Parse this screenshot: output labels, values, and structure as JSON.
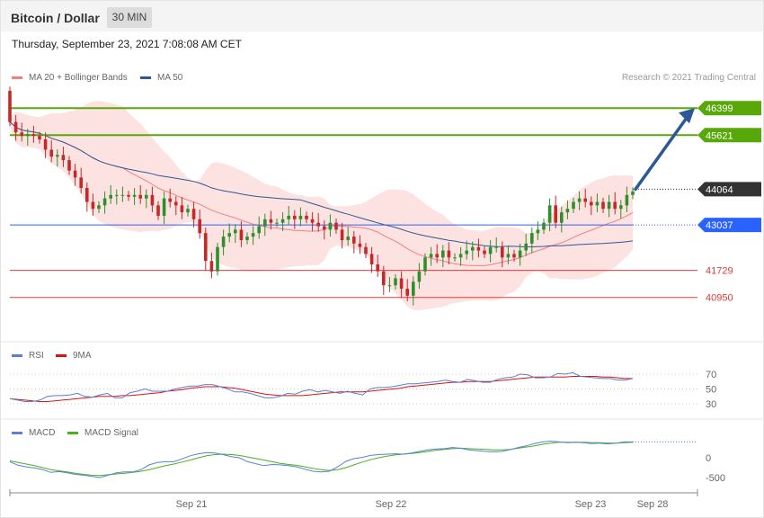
{
  "header": {
    "title": "Bitcoin / Dollar",
    "timeframe": "30 MIN"
  },
  "datetime": "Thursday, September 23, 2021 7:08:08 AM CET",
  "copyright": "Research © 2021 Trading Central",
  "legends": {
    "main": [
      {
        "label": "MA 20 + Bollinger Bands",
        "color": "#f08080"
      },
      {
        "label": "MA 50",
        "color": "#2c5896"
      }
    ],
    "rsi": [
      {
        "label": "RSI",
        "color": "#5b7fd6"
      },
      {
        "label": "9MA",
        "color": "#dd1111"
      }
    ],
    "macd": [
      {
        "label": "MACD",
        "color": "#5b7fd6"
      },
      {
        "label": "MACD Signal",
        "color": "#4caf1e"
      }
    ]
  },
  "colors": {
    "up": "#2f8f2a",
    "down": "#c62828",
    "resistance": "#58a80a",
    "support": "#2962ff",
    "current": "#333333",
    "minor_support": "#e53935"
  },
  "chart_data": [
    {
      "type": "line",
      "panel": "price",
      "title": "",
      "x_tick_labels": [
        "Sep 21",
        "Sep 22",
        "Sep 23",
        "Sep 28"
      ],
      "ylim": [
        39700,
        47000
      ],
      "key_levels": [
        {
          "value": 46399,
          "label": "46399",
          "kind": "resistance"
        },
        {
          "value": 45621,
          "label": "45621",
          "kind": "resistance"
        },
        {
          "value": 44064,
          "label": "44064",
          "kind": "current"
        },
        {
          "value": 43037,
          "label": "43037",
          "kind": "support"
        },
        {
          "value": 41729,
          "label": "41729",
          "kind": "minor_support"
        },
        {
          "value": 40950,
          "label": "40950",
          "kind": "minor_support"
        }
      ],
      "projection": {
        "from": 44064,
        "to": 46399
      },
      "series": [
        {
          "name": "Close",
          "values": [
            46000,
            45700,
            45600,
            45650,
            45600,
            45500,
            45200,
            45000,
            45050,
            44900,
            44600,
            44400,
            44100,
            43700,
            43500,
            43600,
            43800,
            43900,
            43900,
            43900,
            43850,
            43900,
            43800,
            43900,
            43600,
            43300,
            43800,
            43700,
            43600,
            43400,
            43500,
            43200,
            42800,
            42000,
            41700,
            42400,
            42700,
            42800,
            42900,
            42600,
            42700,
            42800,
            43000,
            43200,
            43100,
            43100,
            43200,
            43300,
            43200,
            43300,
            43200,
            43100,
            43000,
            42900,
            43100,
            42900,
            42600,
            42700,
            42500,
            42400,
            42200,
            41900,
            41700,
            41300,
            41300,
            41500,
            41200,
            41000,
            41400,
            41700,
            42100,
            42200,
            42100,
            42300,
            42100,
            42100,
            42200,
            42300,
            42400,
            42300,
            42200,
            42400,
            42400,
            42100,
            42200,
            42100,
            42300,
            42500,
            42800,
            42900,
            43100,
            43600,
            43100,
            43400,
            43500,
            43700,
            43800,
            43700,
            43600,
            43700,
            43500,
            43700,
            43500,
            43600,
            43900,
            44000
          ]
        }
      ]
    },
    {
      "type": "line",
      "panel": "rsi",
      "title": "",
      "y_tick_labels": [
        "70",
        "50",
        "30"
      ],
      "ylim": [
        20,
        80
      ],
      "levels": [
        70,
        50,
        30
      ],
      "series": [
        {
          "name": "RSI",
          "values": [
            37,
            35,
            33,
            33,
            35,
            40,
            41,
            41,
            42,
            44,
            40,
            39,
            42,
            44,
            38,
            38,
            45,
            47,
            50,
            47,
            47,
            47,
            50,
            52,
            54,
            54,
            56,
            56,
            53,
            50,
            46,
            46,
            44,
            41,
            38,
            38,
            40,
            44,
            43,
            47,
            49,
            46,
            48,
            46,
            44,
            47,
            44,
            42,
            50,
            52,
            52,
            53,
            55,
            57,
            57,
            58,
            59,
            60,
            62,
            60,
            59,
            63,
            61,
            59,
            59,
            63,
            65,
            66,
            70,
            69,
            65,
            65,
            66,
            71,
            70,
            72,
            67,
            66,
            65,
            64,
            64,
            62,
            62,
            64
          ]
        },
        {
          "name": "9MA",
          "values": [
            37,
            36,
            35,
            34,
            33,
            33,
            34,
            35,
            36,
            37,
            38,
            39,
            40,
            40,
            40,
            41,
            41,
            42,
            43,
            44,
            45,
            47,
            48,
            49,
            51,
            52,
            53,
            53,
            53,
            52,
            51,
            49,
            47,
            45,
            43,
            42,
            41,
            41,
            41,
            41,
            42,
            43,
            44,
            45,
            46,
            46,
            46,
            46,
            47,
            48,
            49,
            50,
            51,
            53,
            54,
            55,
            56,
            57,
            58,
            59,
            59,
            60,
            60,
            60,
            60,
            61,
            62,
            63,
            64,
            65,
            66,
            66,
            66,
            66,
            66,
            67,
            67,
            67,
            67,
            66,
            66,
            65,
            64,
            64
          ]
        }
      ]
    },
    {
      "type": "line",
      "panel": "macd",
      "title": "",
      "y_tick_labels": [
        "0",
        "-500"
      ],
      "ylim": [
        -600,
        650
      ],
      "series": [
        {
          "name": "MACD",
          "values": [
            -100,
            -190,
            -230,
            -260,
            -300,
            -370,
            -350,
            -380,
            -420,
            -440,
            -470,
            -500,
            -440,
            -380,
            -360,
            -360,
            -300,
            -180,
            -120,
            -100,
            -100,
            -30,
            50,
            100,
            130,
            120,
            80,
            30,
            0,
            -100,
            -150,
            -200,
            -170,
            -180,
            -200,
            -230,
            -290,
            -340,
            -360,
            -340,
            -230,
            -90,
            -20,
            10,
            60,
            80,
            90,
            100,
            90,
            120,
            160,
            200,
            220,
            230,
            260,
            240,
            200,
            180,
            160,
            150,
            160,
            200,
            260,
            300,
            360,
            400,
            420,
            400,
            380,
            390,
            380,
            360,
            370,
            350,
            370,
            400,
            400
          ]
        },
        {
          "name": "MACD Signal",
          "values": [
            -80,
            -120,
            -160,
            -200,
            -250,
            -300,
            -330,
            -360,
            -390,
            -420,
            -440,
            -450,
            -430,
            -410,
            -390,
            -370,
            -340,
            -300,
            -250,
            -200,
            -160,
            -110,
            -60,
            0,
            50,
            80,
            90,
            80,
            60,
            20,
            -20,
            -60,
            -100,
            -140,
            -170,
            -190,
            -230,
            -270,
            -300,
            -320,
            -300,
            -250,
            -180,
            -110,
            -50,
            0,
            40,
            70,
            90,
            110,
            130,
            160,
            190,
            210,
            230,
            240,
            230,
            220,
            210,
            200,
            200,
            210,
            240,
            270,
            300,
            340,
            370,
            390,
            390,
            390,
            390,
            380,
            380,
            370,
            370,
            380,
            390
          ]
        }
      ]
    }
  ]
}
